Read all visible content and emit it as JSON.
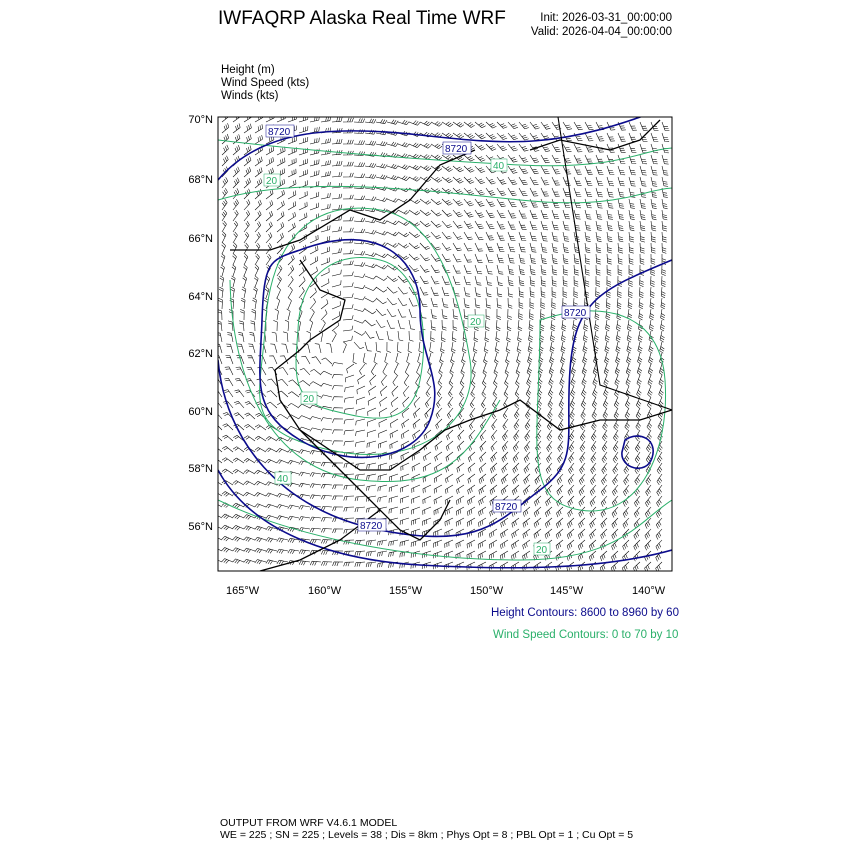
{
  "header": {
    "title": "IWFAQRP Alaska Real Time WRF",
    "init": "Init: 2026-03-31_00:00:00",
    "valid": "Valid: 2026-04-04_00:00:00"
  },
  "fields": [
    "Height   (m)",
    "Wind Speed   (kts)",
    "Winds   (kts)"
  ],
  "map": {
    "lat_ticks": [
      "70°N",
      "68°N",
      "66°N",
      "64°N",
      "62°N",
      "60°N",
      "58°N",
      "56°N"
    ],
    "lon_ticks": [
      "165°W",
      "160°W",
      "155°W",
      "150°W",
      "145°W",
      "140°W"
    ],
    "height_labels": [
      "8720",
      "8720",
      "8720",
      "8720",
      "8720"
    ],
    "wind_labels": [
      "40",
      "20",
      "20",
      "20",
      "40",
      "20"
    ],
    "colors": {
      "height": "#0b0b8c",
      "wind_speed": "#2ab06a",
      "barbs": "#000000",
      "coast": "#000000"
    }
  },
  "legend": {
    "height": "Height Contours: 8600 to 8960 by 60",
    "wind": "Wind Speed Contours: 0 to 70 by 10"
  },
  "footer": {
    "line1": "OUTPUT FROM WRF V4.6.1 MODEL",
    "line2": "WE = 225 ; SN = 225 ; Levels = 38 ; Dis = 8km ; Phys Opt = 8 ; PBL Opt = 1 ; Cu Opt = 5"
  }
}
